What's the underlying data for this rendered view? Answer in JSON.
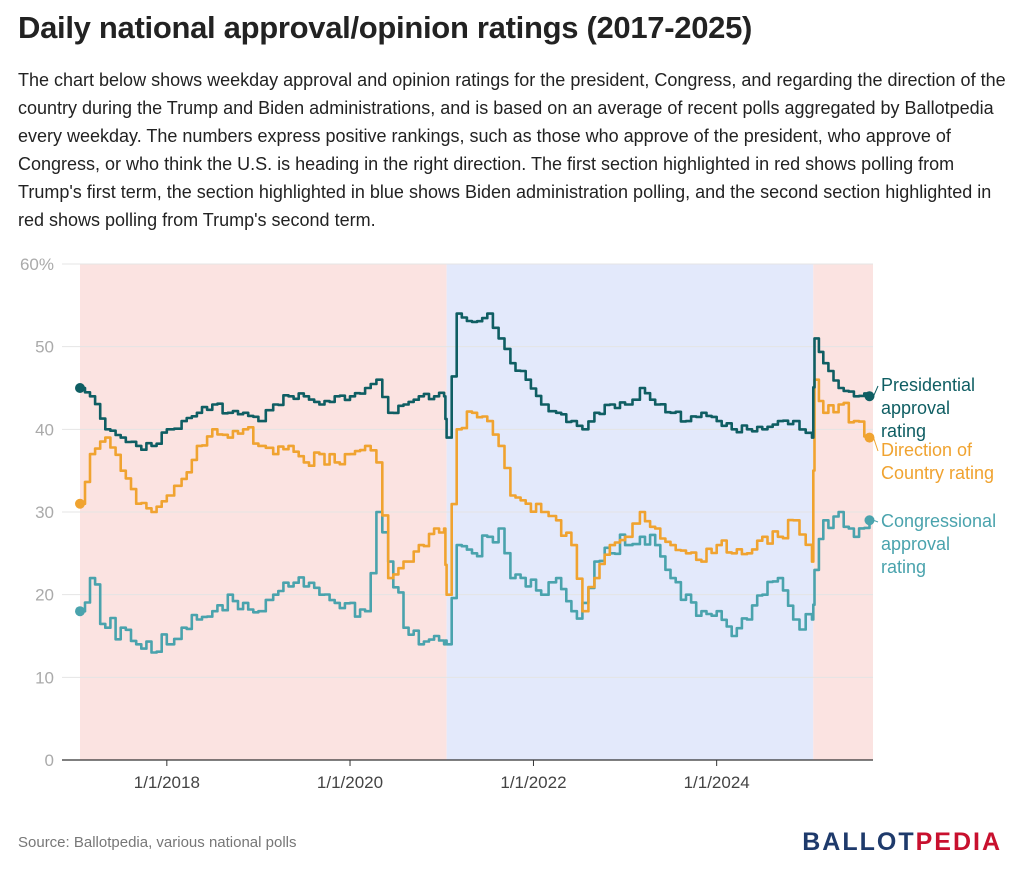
{
  "header": {
    "title": "Daily national approval/opinion ratings (2017-2025)",
    "description": "The chart below shows weekday approval and opinion ratings for the president, Congress, and regarding the direction of the country during the Trump and Biden administrations, and is based on an average of recent polls aggregated by Ballotpedia every weekday. The numbers express positive rankings, such as those who approve of the president, who approve of Congress, or who think the U.S. is heading in the right direction. The first section highlighted in red shows polling from Trump's first term, the section highlighted in blue shows Biden administration polling, and the second section highlighted in red shows polling from Trump's second term."
  },
  "footer": {
    "source": "Source: Ballotpedia, various national polls",
    "logo_part1": "BALLOT",
    "logo_part2": "PEDIA"
  },
  "chart_data": {
    "type": "line",
    "x_type": "date",
    "xlim": [
      "2017-01-20",
      "2025-09-15"
    ],
    "ylim": [
      0,
      60
    ],
    "y_ticks": [
      0,
      10,
      20,
      30,
      40,
      50,
      60
    ],
    "y_tick_labels": [
      "0",
      "10",
      "20",
      "30",
      "40",
      "50",
      "60%"
    ],
    "x_ticks": [
      "2018-01-01",
      "2020-01-01",
      "2022-01-01",
      "2024-01-01"
    ],
    "x_tick_labels": [
      "1/1/2018",
      "1/1/2020",
      "1/1/2022",
      "1/1/2024"
    ],
    "grid": true,
    "shaded_periods": [
      {
        "start": "2017-01-20",
        "end": "2021-01-20",
        "color": "#fbe3e1"
      },
      {
        "start": "2021-01-20",
        "end": "2025-01-20",
        "color": "#e3e9fb"
      },
      {
        "start": "2025-01-20",
        "end": "2025-09-15",
        "color": "#fbe3e1"
      }
    ],
    "series": [
      {
        "name": "Presidential approval rating",
        "label_lines": [
          "Presidential",
          "approval",
          "rating"
        ],
        "color": "#0f5e63",
        "x": [
          "2017-01-20",
          "2017-03-01",
          "2017-05-01",
          "2017-07-01",
          "2017-09-01",
          "2017-11-01",
          "2018-01-01",
          "2018-03-01",
          "2018-05-01",
          "2018-07-01",
          "2018-09-01",
          "2018-11-01",
          "2019-01-01",
          "2019-03-01",
          "2019-05-01",
          "2019-07-01",
          "2019-09-01",
          "2019-11-01",
          "2020-01-01",
          "2020-03-01",
          "2020-04-15",
          "2020-06-01",
          "2020-08-01",
          "2020-10-01",
          "2020-12-01",
          "2021-01-10",
          "2021-01-20",
          "2021-03-01",
          "2021-05-01",
          "2021-07-01",
          "2021-08-15",
          "2021-10-01",
          "2021-12-01",
          "2022-02-01",
          "2022-04-01",
          "2022-06-01",
          "2022-07-15",
          "2022-09-01",
          "2022-11-01",
          "2023-01-01",
          "2023-03-01",
          "2023-05-01",
          "2023-07-01",
          "2023-09-01",
          "2023-11-01",
          "2024-01-01",
          "2024-03-01",
          "2024-05-01",
          "2024-07-01",
          "2024-09-01",
          "2024-11-01",
          "2025-01-15",
          "2025-01-25",
          "2025-03-01",
          "2025-05-01",
          "2025-07-01",
          "2025-09-01"
        ],
        "y": [
          45,
          44,
          40,
          39,
          38,
          38,
          40,
          41,
          42,
          43,
          42,
          42,
          41,
          43,
          44,
          44,
          43,
          44,
          44,
          45,
          46,
          42,
          43,
          44,
          44,
          44,
          39,
          54,
          53,
          54,
          51,
          48,
          46,
          43,
          42,
          41,
          40,
          42,
          43,
          43,
          45,
          43,
          42,
          41,
          42,
          41,
          40,
          40,
          40,
          41,
          41,
          39,
          51,
          48,
          45,
          44,
          44
        ]
      },
      {
        "name": "Direction of Country rating",
        "label_lines": [
          "Direction of",
          "Country rating"
        ],
        "color": "#f0a330",
        "x": [
          "2017-01-20",
          "2017-03-01",
          "2017-05-01",
          "2017-07-01",
          "2017-09-01",
          "2017-11-01",
          "2018-01-01",
          "2018-03-01",
          "2018-05-01",
          "2018-07-01",
          "2018-09-01",
          "2018-11-01",
          "2019-01-01",
          "2019-03-01",
          "2019-05-01",
          "2019-07-01",
          "2019-09-01",
          "2019-11-01",
          "2020-01-01",
          "2020-03-01",
          "2020-04-15",
          "2020-06-01",
          "2020-08-01",
          "2020-10-01",
          "2020-12-01",
          "2021-01-10",
          "2021-01-20",
          "2021-03-01",
          "2021-05-01",
          "2021-07-01",
          "2021-08-15",
          "2021-10-01",
          "2021-12-01",
          "2022-02-01",
          "2022-04-01",
          "2022-06-01",
          "2022-07-15",
          "2022-09-01",
          "2022-11-01",
          "2023-01-01",
          "2023-03-01",
          "2023-05-01",
          "2023-07-01",
          "2023-09-01",
          "2023-11-01",
          "2024-01-01",
          "2024-03-01",
          "2024-05-01",
          "2024-07-01",
          "2024-09-01",
          "2024-11-01",
          "2025-01-15",
          "2025-01-25",
          "2025-03-01",
          "2025-05-01",
          "2025-07-01",
          "2025-09-01"
        ],
        "y": [
          31,
          37,
          39,
          35,
          31,
          30,
          32,
          34,
          38,
          40,
          39,
          40,
          38,
          37,
          38,
          36,
          37,
          36,
          37,
          38,
          36,
          22,
          24,
          26,
          28,
          28,
          20,
          40,
          42,
          41,
          38,
          32,
          31,
          30,
          29,
          26,
          18,
          22,
          26,
          27,
          30,
          28,
          26,
          25,
          24,
          26,
          25,
          25,
          27,
          27,
          29,
          24,
          46,
          42,
          43,
          41,
          39
        ]
      },
      {
        "name": "Congressional approval rating",
        "label_lines": [
          "Congressional",
          "approval",
          "rating"
        ],
        "color": "#4aa3ad",
        "x": [
          "2017-01-20",
          "2017-03-01",
          "2017-05-01",
          "2017-07-01",
          "2017-09-01",
          "2017-11-01",
          "2018-01-01",
          "2018-03-01",
          "2018-05-01",
          "2018-07-01",
          "2018-09-01",
          "2018-11-01",
          "2019-01-01",
          "2019-03-01",
          "2019-05-01",
          "2019-07-01",
          "2019-09-01",
          "2019-11-01",
          "2020-01-01",
          "2020-03-01",
          "2020-04-15",
          "2020-06-01",
          "2020-08-01",
          "2020-10-01",
          "2020-12-01",
          "2021-01-10",
          "2021-01-20",
          "2021-03-01",
          "2021-05-01",
          "2021-07-01",
          "2021-08-15",
          "2021-10-01",
          "2021-12-01",
          "2022-02-01",
          "2022-04-01",
          "2022-06-01",
          "2022-07-15",
          "2022-09-01",
          "2022-11-01",
          "2023-01-01",
          "2023-03-01",
          "2023-05-01",
          "2023-07-01",
          "2023-09-01",
          "2023-11-01",
          "2024-01-01",
          "2024-03-01",
          "2024-05-01",
          "2024-07-01",
          "2024-09-01",
          "2024-11-01",
          "2025-01-15",
          "2025-01-25",
          "2025-03-01",
          "2025-05-01",
          "2025-07-01",
          "2025-09-01"
        ],
        "y": [
          18,
          22,
          16,
          16,
          14,
          13,
          14,
          16,
          17,
          18,
          20,
          19,
          18,
          20,
          21,
          21,
          20,
          19,
          19,
          18,
          30,
          24,
          16,
          14,
          15,
          14,
          14,
          26,
          25,
          27,
          28,
          22,
          21,
          20,
          22,
          18,
          19,
          24,
          25,
          26,
          27,
          26,
          22,
          20,
          18,
          18,
          15,
          17,
          20,
          22,
          17,
          17,
          23,
          29,
          30,
          27,
          29
        ]
      }
    ]
  }
}
